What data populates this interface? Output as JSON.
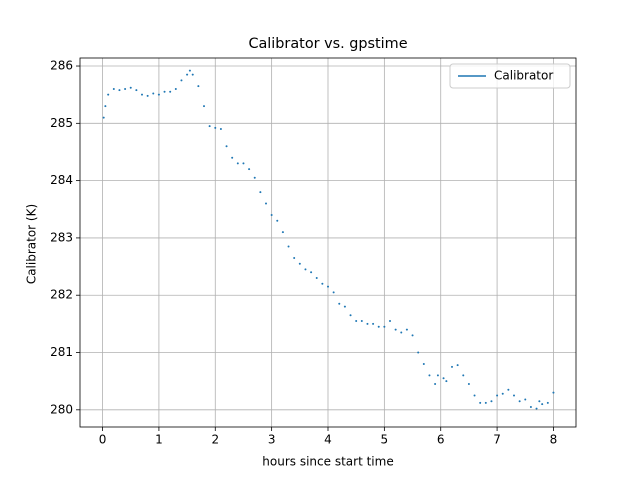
{
  "chart_data": {
    "type": "line",
    "title": "Calibrator vs. gpstime",
    "x_label": "hours since start time",
    "y_label": "Calibrator (K)",
    "xlim": [
      -0.4,
      8.4
    ],
    "ylim": [
      279.7,
      286.14
    ],
    "xticks": [
      0,
      1,
      2,
      3,
      4,
      5,
      6,
      7,
      8
    ],
    "yticks": [
      280,
      281,
      282,
      283,
      284,
      285,
      286
    ],
    "grid": true,
    "legend": "upper right",
    "x": [
      0.02,
      0.05,
      0.1,
      0.2,
      0.3,
      0.4,
      0.5,
      0.6,
      0.7,
      0.8,
      0.9,
      1.0,
      1.1,
      1.2,
      1.3,
      1.4,
      1.5,
      1.55,
      1.6,
      1.7,
      1.8,
      1.9,
      2.0,
      2.1,
      2.2,
      2.3,
      2.4,
      2.5,
      2.6,
      2.7,
      2.8,
      2.9,
      3.0,
      3.1,
      3.2,
      3.3,
      3.4,
      3.5,
      3.6,
      3.7,
      3.8,
      3.9,
      4.0,
      4.1,
      4.2,
      4.3,
      4.4,
      4.5,
      4.6,
      4.7,
      4.8,
      4.9,
      5.0,
      5.1,
      5.2,
      5.3,
      5.4,
      5.5,
      5.6,
      5.7,
      5.8,
      5.9,
      5.95,
      6.05,
      6.1,
      6.2,
      6.3,
      6.4,
      6.5,
      6.6,
      6.7,
      6.8,
      6.9,
      7.0,
      7.1,
      7.2,
      7.3,
      7.4,
      7.5,
      7.6,
      7.7,
      7.75,
      7.8,
      7.9,
      8.0
    ],
    "series": [
      {
        "name": "Calibrator",
        "color": "#1f77b4",
        "values": [
          285.1,
          285.3,
          285.5,
          285.6,
          285.58,
          285.6,
          285.62,
          285.58,
          285.5,
          285.48,
          285.52,
          285.5,
          285.55,
          285.55,
          285.6,
          285.75,
          285.85,
          285.92,
          285.85,
          285.65,
          285.3,
          284.95,
          284.92,
          284.9,
          284.6,
          284.4,
          284.3,
          284.3,
          284.2,
          284.05,
          283.8,
          283.6,
          283.4,
          283.3,
          283.1,
          282.85,
          282.65,
          282.55,
          282.45,
          282.4,
          282.3,
          282.2,
          282.15,
          282.05,
          281.85,
          281.8,
          281.65,
          281.55,
          281.55,
          281.5,
          281.5,
          281.45,
          281.45,
          281.55,
          281.4,
          281.35,
          281.4,
          281.3,
          281.0,
          280.8,
          280.6,
          280.45,
          280.6,
          280.55,
          280.5,
          280.75,
          280.78,
          280.6,
          280.45,
          280.25,
          280.12,
          280.12,
          280.15,
          280.25,
          280.28,
          280.35,
          280.25,
          280.15,
          280.18,
          280.05,
          280.02,
          280.15,
          280.1,
          280.12,
          280.3
        ]
      }
    ]
  }
}
